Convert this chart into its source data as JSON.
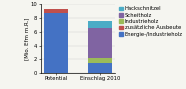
{
  "categories": [
    "Potential",
    "Einschlag 2010"
  ],
  "series": [
    {
      "label": "Energie-/Industrieholz",
      "color": "#4472C4",
      "values": [
        8.7,
        1.4
      ]
    },
    {
      "label": "zusätzliche Ausbeute",
      "color": "#C0504D",
      "values": [
        0.7,
        0.0
      ]
    },
    {
      "label": "Industrieholz",
      "color": "#9BBB59",
      "values": [
        0.0,
        0.85
      ]
    },
    {
      "label": "Scheitholz",
      "color": "#8064A2",
      "values": [
        0.0,
        4.3
      ]
    },
    {
      "label": "Hackschnitzel",
      "color": "#4BACC6",
      "values": [
        0.0,
        1.0
      ]
    }
  ],
  "ylabel": "[Mio. Efm m.R.]",
  "ylim": [
    0,
    10
  ],
  "yticks": [
    0,
    2,
    4,
    6,
    8,
    10
  ],
  "bar_width": 0.55,
  "figsize": [
    1.86,
    0.89
  ],
  "dpi": 100,
  "background_color": "#f5f5f0",
  "legend_fontsize": 3.8,
  "axis_fontsize": 4.0,
  "tick_fontsize": 3.8
}
